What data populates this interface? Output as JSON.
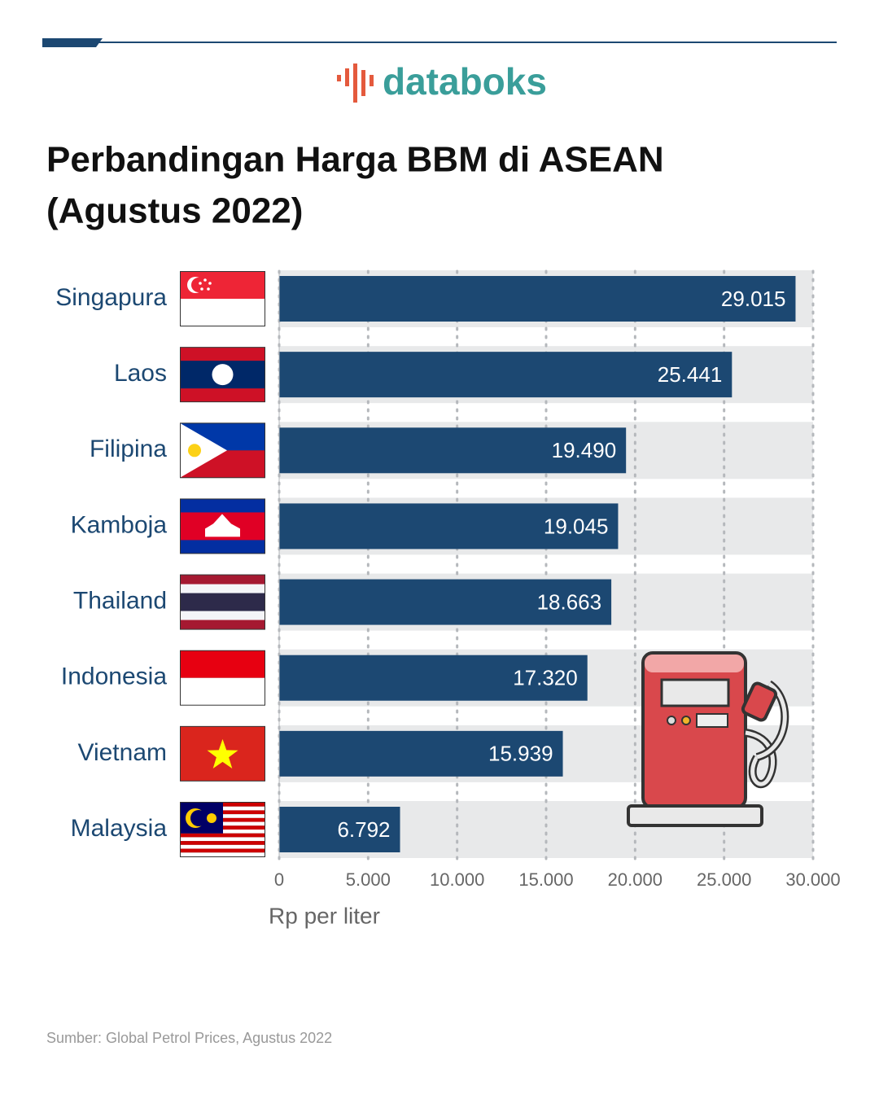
{
  "logo": "databoks",
  "chart_data": {
    "type": "bar",
    "orientation": "horizontal",
    "title": [
      "Perbandingan Harga BBM di ASEAN",
      "(Agustus 2022)"
    ],
    "categories": [
      "Singapura",
      "Laos",
      "Filipina",
      "Kamboja",
      "Thailand",
      "Indonesia",
      "Vietnam",
      "Malaysia"
    ],
    "values": [
      29015,
      25441,
      19490,
      19045,
      18663,
      17320,
      15939,
      6792
    ],
    "value_labels": [
      "29.015",
      "25.441",
      "19.490",
      "19.045",
      "18.663",
      "17.320",
      "15.939",
      "6.792"
    ],
    "color": "#1c4872",
    "xlim": [
      0,
      30000
    ],
    "xticks": [
      0,
      {
        "value": 5000,
        "label": "5.000"
      },
      {
        "value": 10000,
        "label": "10.000"
      },
      {
        "value": 15000,
        "label": "15.000"
      },
      {
        "value": 20000,
        "label": "20.000"
      },
      {
        "value": 25000,
        "label": "25.000"
      },
      {
        "value": 30000,
        "label": "30.000"
      }
    ],
    "xlabel": "Rp per liter",
    "grid": true,
    "source": "Sumber: Global Petrol Prices, Agustus 2022"
  }
}
